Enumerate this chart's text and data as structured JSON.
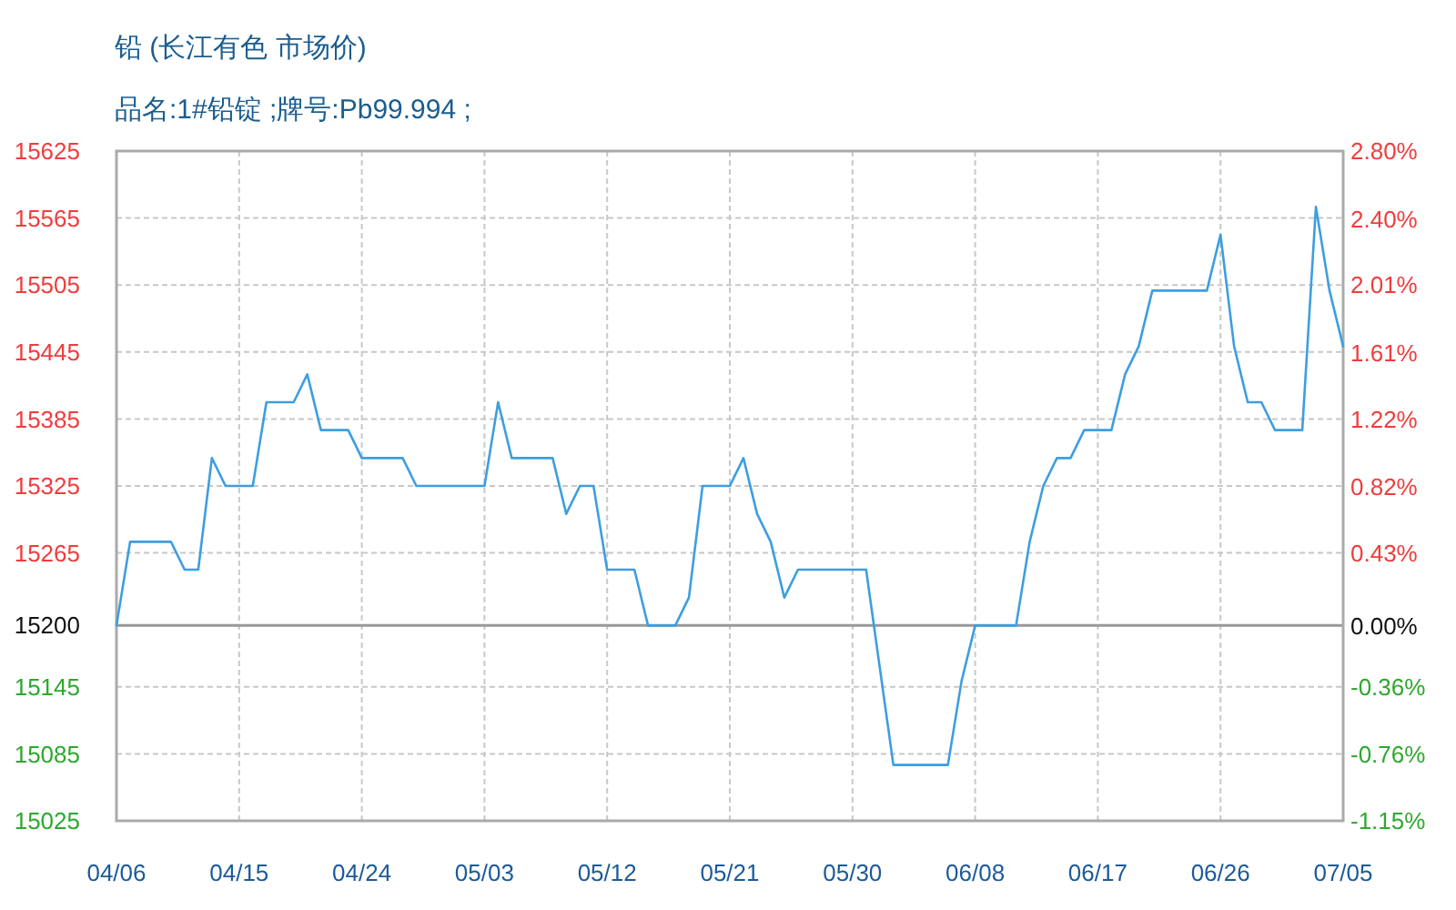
{
  "chart_data": {
    "type": "line",
    "title": "铅 (长江有色 市场价)",
    "subtitle": "品名:1#铅锭 ;牌号:Pb99.994 ;",
    "x": [
      "--04-06",
      "--04-07",
      "--04-10",
      "--04-11",
      "--04-12",
      "--04-13",
      "--04-14",
      "--04-16",
      "--04-17",
      "--04-19",
      "--04-20",
      "--04-21",
      "--04-23",
      "--04-24",
      "--04-27",
      "--04-28",
      "--05-03",
      "--05-04",
      "--05-05",
      "--05-08",
      "--05-09",
      "--05-10",
      "--05-11",
      "--05-12",
      "--05-14",
      "--05-15",
      "--05-17",
      "--05-18",
      "--05-19",
      "--05-21",
      "--05-22",
      "--05-23",
      "--05-24",
      "--05-25",
      "--05-26",
      "--05-31",
      "--06-02",
      "--06-06",
      "--06-07",
      "--06-08",
      "--06-11",
      "--06-12",
      "--06-13",
      "--06-14",
      "--06-15",
      "--06-16",
      "--06-18",
      "--06-19",
      "--06-20",
      "--06-21",
      "--06-25",
      "--06-26",
      "--06-27",
      "--06-28",
      "--06-29",
      "--06-30",
      "--07-02",
      "--07-03",
      "--07-04",
      "--07-05"
    ],
    "values": [
      15200,
      15275,
      15275,
      15250,
      15250,
      15350,
      15325,
      15325,
      15400,
      15400,
      15425,
      15375,
      15375,
      15350,
      15350,
      15325,
      15325,
      15400,
      15350,
      15350,
      15300,
      15325,
      15325,
      15250,
      15250,
      15200,
      15200,
      15225,
      15325,
      15325,
      15350,
      15300,
      15275,
      15225,
      15250,
      15250,
      15075,
      15075,
      15150,
      15200,
      15200,
      15275,
      15325,
      15350,
      15350,
      15375,
      15375,
      15425,
      15450,
      15500,
      15500,
      15550,
      15450,
      15400,
      15400,
      15375,
      15375,
      15575,
      15500,
      15450
    ],
    "color": "#3d9ee0",
    "xlim": [
      "--04-06",
      "--07-05"
    ],
    "xticks": [
      {
        "value": "--04-06",
        "label": "04/06"
      },
      {
        "value": "--04-15",
        "label": "04/15"
      },
      {
        "value": "--04-24",
        "label": "04/24"
      },
      {
        "value": "--05-03",
        "label": "05/03"
      },
      {
        "value": "--05-12",
        "label": "05/12"
      },
      {
        "value": "--05-21",
        "label": "05/21"
      },
      {
        "value": "--05-30",
        "label": "05/30"
      },
      {
        "value": "--06-08",
        "label": "06/08"
      },
      {
        "value": "--06-17",
        "label": "06/17"
      },
      {
        "value": "--06-26",
        "label": "06/26"
      },
      {
        "value": "--07-05",
        "label": "07/05"
      }
    ],
    "ylim": [
      15025,
      15625
    ],
    "yticks": [
      15025,
      15085,
      15145,
      15200,
      15265,
      15325,
      15385,
      15445,
      15505,
      15565,
      15625
    ],
    "y2lim": [
      -1.15,
      2.8
    ],
    "y2ticks": [
      {
        "value": -1.15,
        "label": "-1.15%"
      },
      {
        "value": -0.76,
        "label": "-0.76%"
      },
      {
        "value": -0.36,
        "label": "-0.36%"
      },
      {
        "value": 0,
        "label": "0.00%"
      },
      {
        "value": 0.43,
        "label": "0.43%"
      },
      {
        "value": 0.82,
        "label": "0.82%"
      },
      {
        "value": 1.22,
        "label": "1.22%"
      },
      {
        "value": 1.61,
        "label": "1.61%"
      },
      {
        "value": 2.01,
        "label": "2.01%"
      },
      {
        "value": 2.4,
        "label": "2.40%"
      },
      {
        "value": 2.8,
        "label": "2.80%"
      }
    ],
    "grid": true,
    "ref_lines": [
      {
        "axis": "y",
        "value": 15200,
        "color": "#999999"
      }
    ]
  }
}
